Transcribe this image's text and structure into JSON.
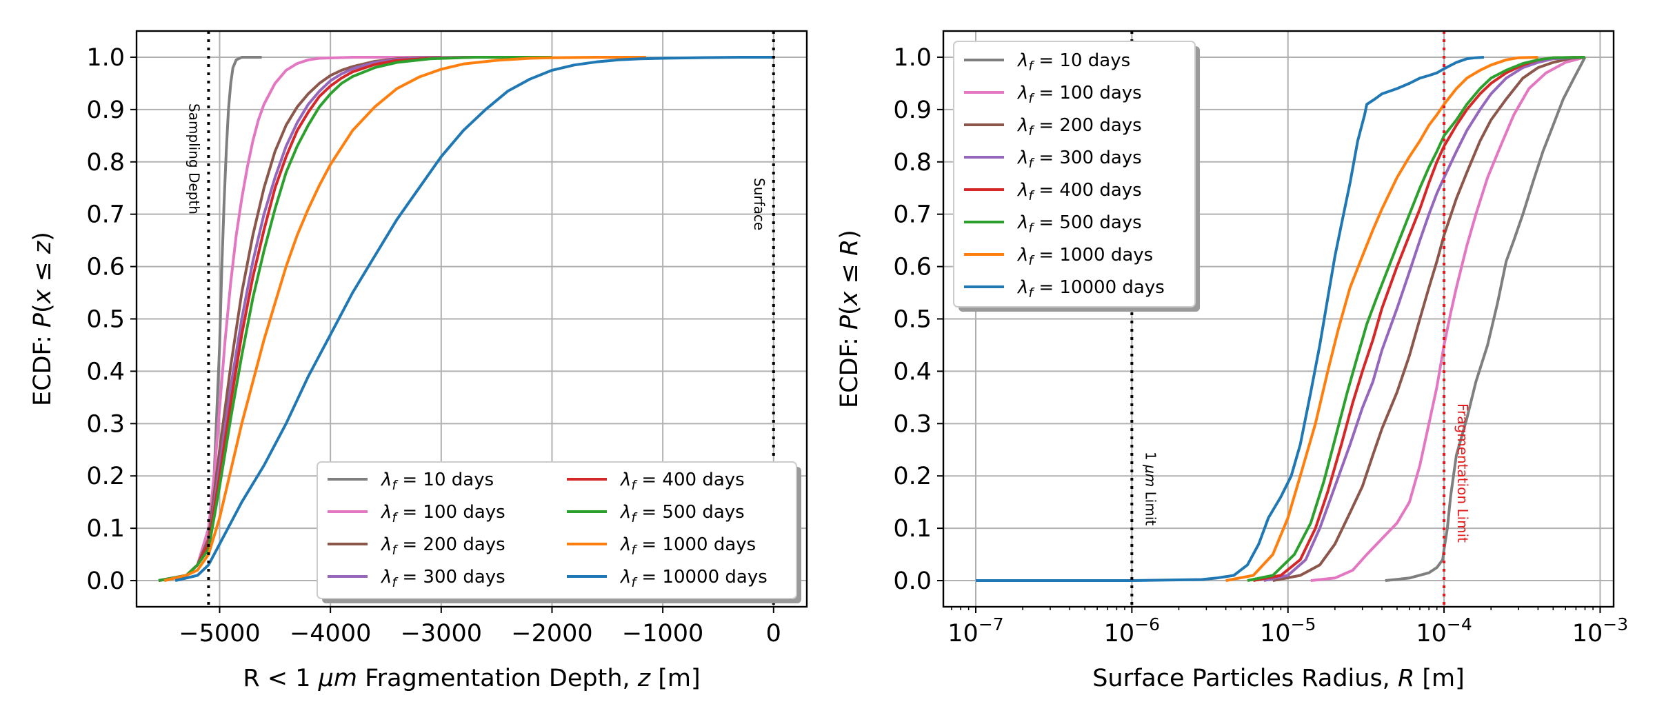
{
  "chart_data": [
    {
      "type": "line",
      "xlabel_parts": [
        "R < 1 ",
        "μm",
        " Fragmentation Depth, ",
        "z",
        " [m]"
      ],
      "ylabel_parts": [
        "ECDF: ",
        "P",
        "(",
        "x",
        " ≤ ",
        "z",
        ")"
      ],
      "xlim": [
        -5750,
        300
      ],
      "ylim": [
        -0.05,
        1.05
      ],
      "x_ticks": [
        -5000,
        -4000,
        -3000,
        -2000,
        -1000,
        0
      ],
      "x_tick_labels": [
        "−5000",
        "−4000",
        "−3000",
        "−2000",
        "−1000",
        "0"
      ],
      "y_ticks": [
        0.0,
        0.1,
        0.2,
        0.3,
        0.4,
        0.5,
        0.6,
        0.7,
        0.8,
        0.9,
        1.0
      ],
      "y_tick_labels": [
        "0.0",
        "0.1",
        "0.2",
        "0.3",
        "0.4",
        "0.5",
        "0.6",
        "0.7",
        "0.8",
        "0.9",
        "1.0"
      ],
      "grid": true,
      "legend_placement": "lower-right",
      "legend_columns": 2,
      "reference_lines": [
        {
          "x": -5100,
          "label": "Sampling Depth",
          "color": "#000000"
        },
        {
          "x": 0,
          "label": "Surface",
          "color": "#000000"
        }
      ],
      "series": [
        {
          "name": "10 days",
          "color": "#7f7f7f",
          "x": [
            -5500,
            -5300,
            -5200,
            -5100,
            -5050,
            -5000,
            -4980,
            -4960,
            -4940,
            -4920,
            -4900,
            -4880,
            -4850,
            -4800,
            -4700,
            -4620
          ],
          "y": [
            0.0,
            0.01,
            0.03,
            0.08,
            0.2,
            0.45,
            0.6,
            0.72,
            0.82,
            0.9,
            0.95,
            0.98,
            0.995,
            1.0,
            1.0,
            1.0
          ]
        },
        {
          "name": "100 days",
          "color": "#e377c2",
          "x": [
            -5550,
            -5300,
            -5200,
            -5100,
            -5050,
            -5000,
            -4950,
            -4900,
            -4850,
            -4800,
            -4750,
            -4700,
            -4650,
            -4600,
            -4500,
            -4400,
            -4300,
            -4200,
            -4100,
            -3800,
            -3500,
            -3000
          ],
          "y": [
            0.0,
            0.01,
            0.03,
            0.1,
            0.2,
            0.33,
            0.46,
            0.57,
            0.66,
            0.73,
            0.79,
            0.84,
            0.88,
            0.91,
            0.95,
            0.975,
            0.988,
            0.995,
            0.998,
            1.0,
            1.0,
            1.0
          ]
        },
        {
          "name": "200 days",
          "color": "#8c564b",
          "x": [
            -5550,
            -5300,
            -5200,
            -5100,
            -5000,
            -4900,
            -4800,
            -4700,
            -4600,
            -4500,
            -4400,
            -4300,
            -4200,
            -4100,
            -4000,
            -3900,
            -3800,
            -3600,
            -3400,
            -3200,
            -3000
          ],
          "y": [
            0.0,
            0.01,
            0.03,
            0.08,
            0.25,
            0.41,
            0.55,
            0.66,
            0.75,
            0.82,
            0.87,
            0.905,
            0.93,
            0.95,
            0.965,
            0.975,
            0.982,
            0.992,
            0.997,
            0.999,
            1.0
          ]
        },
        {
          "name": "300 days",
          "color": "#9467bd",
          "x": [
            -5550,
            -5300,
            -5200,
            -5100,
            -5000,
            -4900,
            -4800,
            -4700,
            -4600,
            -4500,
            -4400,
            -4300,
            -4200,
            -4100,
            -4000,
            -3900,
            -3800,
            -3600,
            -3400,
            -3100,
            -2800,
            -2000
          ],
          "y": [
            0.0,
            0.01,
            0.03,
            0.07,
            0.22,
            0.37,
            0.5,
            0.61,
            0.7,
            0.77,
            0.83,
            0.875,
            0.91,
            0.935,
            0.955,
            0.968,
            0.978,
            0.99,
            0.996,
            0.999,
            1.0,
            1.0
          ]
        },
        {
          "name": "400 days",
          "color": "#d62728",
          "x": [
            -5550,
            -5300,
            -5200,
            -5100,
            -5000,
            -4900,
            -4800,
            -4700,
            -4600,
            -4500,
            -4400,
            -4300,
            -4200,
            -4100,
            -4000,
            -3900,
            -3800,
            -3600,
            -3400,
            -3100,
            -2700,
            -2000
          ],
          "y": [
            0.0,
            0.01,
            0.03,
            0.07,
            0.2,
            0.34,
            0.47,
            0.58,
            0.67,
            0.75,
            0.81,
            0.86,
            0.895,
            0.925,
            0.945,
            0.96,
            0.972,
            0.986,
            0.994,
            0.998,
            1.0,
            1.0
          ]
        },
        {
          "name": "500 days",
          "color": "#2ca02c",
          "x": [
            -5550,
            -5300,
            -5200,
            -5100,
            -5000,
            -4900,
            -4800,
            -4700,
            -4600,
            -4500,
            -4400,
            -4300,
            -4200,
            -4100,
            -4000,
            -3900,
            -3800,
            -3600,
            -3400,
            -3100,
            -2700,
            -2000
          ],
          "y": [
            0.0,
            0.01,
            0.03,
            0.06,
            0.18,
            0.31,
            0.43,
            0.54,
            0.63,
            0.71,
            0.78,
            0.83,
            0.87,
            0.905,
            0.93,
            0.95,
            0.963,
            0.98,
            0.99,
            0.997,
            1.0,
            1.0
          ]
        },
        {
          "name": "1000 days",
          "color": "#ff7f0e",
          "x": [
            -5500,
            -5300,
            -5200,
            -5100,
            -5000,
            -4900,
            -4800,
            -4700,
            -4600,
            -4500,
            -4400,
            -4300,
            -4200,
            -4100,
            -4000,
            -3800,
            -3600,
            -3400,
            -3200,
            -3000,
            -2800,
            -2500,
            -2200,
            -2000,
            -1600,
            -1150
          ],
          "y": [
            0.0,
            0.01,
            0.02,
            0.05,
            0.12,
            0.21,
            0.3,
            0.38,
            0.46,
            0.53,
            0.6,
            0.66,
            0.71,
            0.755,
            0.795,
            0.86,
            0.905,
            0.94,
            0.962,
            0.977,
            0.987,
            0.994,
            0.998,
            0.999,
            1.0,
            1.0
          ]
        },
        {
          "name": "10000 days",
          "color": "#1f77b4",
          "x": [
            -5400,
            -5200,
            -5100,
            -5000,
            -4900,
            -4800,
            -4600,
            -4400,
            -4200,
            -4000,
            -3800,
            -3600,
            -3400,
            -3200,
            -3000,
            -2800,
            -2600,
            -2400,
            -2200,
            -2000,
            -1800,
            -1600,
            -1400,
            -1200,
            -1000,
            -700,
            -300,
            0
          ],
          "y": [
            0.0,
            0.01,
            0.03,
            0.07,
            0.11,
            0.15,
            0.22,
            0.3,
            0.39,
            0.47,
            0.55,
            0.62,
            0.69,
            0.75,
            0.81,
            0.86,
            0.9,
            0.935,
            0.958,
            0.975,
            0.985,
            0.991,
            0.995,
            0.997,
            0.998,
            0.999,
            1.0,
            1.0
          ]
        }
      ]
    },
    {
      "type": "line",
      "xscale": "log",
      "xlabel_parts": [
        "Surface Particles Radius, ",
        "R",
        " [m]"
      ],
      "ylabel_parts": [
        "ECDF: ",
        "P",
        "(",
        "x",
        " ≤ ",
        "R",
        ")"
      ],
      "xlim": [
        6.2e-08,
        0.00122
      ],
      "ylim": [
        -0.05,
        1.05
      ],
      "x_ticks": [
        1e-07,
        1e-06,
        1e-05,
        0.0001,
        0.001
      ],
      "x_tick_bases": [
        "10",
        "10",
        "10",
        "10",
        "10"
      ],
      "x_tick_exps": [
        "−7",
        "−6",
        "−5",
        "−4",
        "−3"
      ],
      "y_ticks": [
        0.0,
        0.1,
        0.2,
        0.3,
        0.4,
        0.5,
        0.6,
        0.7,
        0.8,
        0.9,
        1.0
      ],
      "y_tick_labels": [
        "0.0",
        "0.1",
        "0.2",
        "0.3",
        "0.4",
        "0.5",
        "0.6",
        "0.7",
        "0.8",
        "0.9",
        "1.0"
      ],
      "grid": true,
      "legend_placement": "upper-left",
      "legend_columns": 1,
      "reference_lines": [
        {
          "x": 1e-06,
          "label_parts": [
            "1 ",
            "μm",
            " Limit"
          ],
          "color": "#000000"
        },
        {
          "x": 0.0001,
          "label": "Fragmentation Limit",
          "color": "#e31a1c"
        }
      ],
      "series": [
        {
          "name": "10 days",
          "color": "#7f7f7f",
          "x": [
            4.2e-05,
            6e-05,
            8e-05,
            9e-05,
            9.8e-05,
            0.0001,
            0.000105,
            0.00011,
            0.00012,
            0.00014,
            0.00016,
            0.00019,
            0.00022,
            0.00025,
            0.00028,
            0.00032,
            0.00037,
            0.00043,
            0.0005,
            0.00058,
            0.00068,
            0.0008
          ],
          "y": [
            0.0,
            0.005,
            0.015,
            0.025,
            0.04,
            0.06,
            0.1,
            0.16,
            0.24,
            0.31,
            0.38,
            0.45,
            0.53,
            0.61,
            0.65,
            0.7,
            0.76,
            0.82,
            0.87,
            0.92,
            0.96,
            1.0
          ]
        },
        {
          "name": "100 days",
          "color": "#e377c2",
          "x": [
            1.4e-05,
            2e-05,
            2.6e-05,
            3.2e-05,
            4e-05,
            5e-05,
            6e-05,
            7e-05,
            8e-05,
            9e-05,
            0.0001,
            0.00011,
            0.00012,
            0.00014,
            0.00016,
            0.00019,
            0.00023,
            0.00028,
            0.00035,
            0.00045,
            0.0006,
            0.0008
          ],
          "y": [
            0.0,
            0.005,
            0.02,
            0.05,
            0.08,
            0.11,
            0.15,
            0.22,
            0.3,
            0.37,
            0.45,
            0.51,
            0.56,
            0.64,
            0.7,
            0.77,
            0.83,
            0.89,
            0.94,
            0.97,
            0.99,
            1.0
          ]
        },
        {
          "name": "200 days",
          "color": "#8c564b",
          "x": [
            8e-06,
            1.2e-05,
            1.6e-05,
            2e-05,
            2.5e-05,
            3e-05,
            3.5e-05,
            4e-05,
            5e-05,
            6e-05,
            7e-05,
            8e-05,
            9e-05,
            0.0001,
            0.00012,
            0.00014,
            0.00017,
            0.0002,
            0.00025,
            0.00032,
            0.0004,
            0.0005,
            0.00065,
            0.0008
          ],
          "y": [
            0.0,
            0.01,
            0.03,
            0.07,
            0.13,
            0.18,
            0.24,
            0.29,
            0.36,
            0.43,
            0.5,
            0.56,
            0.61,
            0.66,
            0.73,
            0.78,
            0.84,
            0.88,
            0.92,
            0.96,
            0.98,
            0.99,
            0.998,
            1.0
          ]
        },
        {
          "name": "300 days",
          "color": "#9467bd",
          "x": [
            7e-06,
            1e-05,
            1.3e-05,
            1.6e-05,
            2e-05,
            2.5e-05,
            3e-05,
            3.5e-05,
            4e-05,
            5e-05,
            6e-05,
            7e-05,
            8e-05,
            9e-05,
            0.0001,
            0.00012,
            0.00014,
            0.00017,
            0.0002,
            0.00025,
            0.00032,
            0.0004,
            0.0005,
            0.0008
          ],
          "y": [
            0.0,
            0.01,
            0.04,
            0.1,
            0.18,
            0.26,
            0.33,
            0.38,
            0.44,
            0.52,
            0.59,
            0.65,
            0.7,
            0.74,
            0.77,
            0.82,
            0.86,
            0.9,
            0.93,
            0.96,
            0.98,
            0.99,
            0.997,
            1.0
          ]
        },
        {
          "name": "400 days",
          "color": "#d62728",
          "x": [
            6e-06,
            9e-06,
            1.2e-05,
            1.5e-05,
            1.8e-05,
            2.2e-05,
            2.6e-05,
            3e-05,
            3.5e-05,
            4e-05,
            5e-05,
            6e-05,
            7e-05,
            8e-05,
            9e-05,
            0.0001,
            0.00012,
            0.00014,
            0.00017,
            0.0002,
            0.00025,
            0.00032,
            0.0004,
            0.0005,
            0.0008
          ],
          "y": [
            0.0,
            0.01,
            0.04,
            0.1,
            0.17,
            0.26,
            0.34,
            0.4,
            0.46,
            0.52,
            0.6,
            0.66,
            0.71,
            0.76,
            0.8,
            0.83,
            0.87,
            0.9,
            0.93,
            0.95,
            0.97,
            0.985,
            0.995,
            0.999,
            1.0
          ]
        },
        {
          "name": "500 days",
          "color": "#2ca02c",
          "x": [
            5.5e-06,
            8e-06,
            1.1e-05,
            1.4e-05,
            1.7e-05,
            2e-05,
            2.4e-05,
            2.8e-05,
            3.2e-05,
            3.7e-05,
            4.3e-05,
            5e-05,
            6e-05,
            7e-05,
            8e-05,
            9e-05,
            0.0001,
            0.00012,
            0.00014,
            0.00017,
            0.0002,
            0.00025,
            0.00032,
            0.0004,
            0.0005,
            0.0008
          ],
          "y": [
            0.0,
            0.01,
            0.05,
            0.11,
            0.19,
            0.27,
            0.36,
            0.43,
            0.49,
            0.54,
            0.59,
            0.64,
            0.7,
            0.75,
            0.79,
            0.82,
            0.85,
            0.88,
            0.91,
            0.94,
            0.96,
            0.975,
            0.988,
            0.995,
            0.999,
            1.0
          ]
        },
        {
          "name": "1000 days",
          "color": "#ff7f0e",
          "x": [
            4e-06,
            6e-06,
            8e-06,
            1e-05,
            1.2e-05,
            1.5e-05,
            1.8e-05,
            2.1e-05,
            2.5e-05,
            3e-05,
            3.5e-05,
            4e-05,
            5e-05,
            6e-05,
            7e-05,
            8e-05,
            9e-05,
            0.0001,
            0.00012,
            0.00014,
            0.00017,
            0.0002,
            0.00025,
            0.0003,
            0.0004
          ],
          "y": [
            0.0,
            0.01,
            0.05,
            0.12,
            0.2,
            0.3,
            0.4,
            0.48,
            0.56,
            0.62,
            0.67,
            0.71,
            0.77,
            0.81,
            0.84,
            0.87,
            0.89,
            0.91,
            0.94,
            0.96,
            0.975,
            0.985,
            0.995,
            0.999,
            1.0
          ]
        },
        {
          "name": "10000 days",
          "color": "#1f77b4",
          "x": [
            1e-07,
            1e-06,
            2.8e-06,
            3.5e-06,
            4.5e-06,
            5.5e-06,
            6.5e-06,
            7.5e-06,
            9e-06,
            1.05e-05,
            1.2e-05,
            1.4e-05,
            1.6e-05,
            1.8e-05,
            2e-05,
            2.2e-05,
            2.5e-05,
            2.8e-05,
            3.1e-05,
            3.2e-05,
            3.6e-05,
            4e-05,
            5e-05,
            6e-05,
            7e-05,
            8e-05,
            9e-05,
            0.0001,
            0.00012,
            0.00014,
            0.00016,
            0.00018
          ],
          "y": [
            0.0,
            0.0,
            0.002,
            0.005,
            0.01,
            0.03,
            0.07,
            0.12,
            0.16,
            0.2,
            0.26,
            0.36,
            0.45,
            0.54,
            0.62,
            0.68,
            0.76,
            0.84,
            0.89,
            0.91,
            0.92,
            0.93,
            0.94,
            0.95,
            0.96,
            0.965,
            0.97,
            0.978,
            0.99,
            0.997,
            0.999,
            1.0
          ]
        }
      ]
    }
  ]
}
